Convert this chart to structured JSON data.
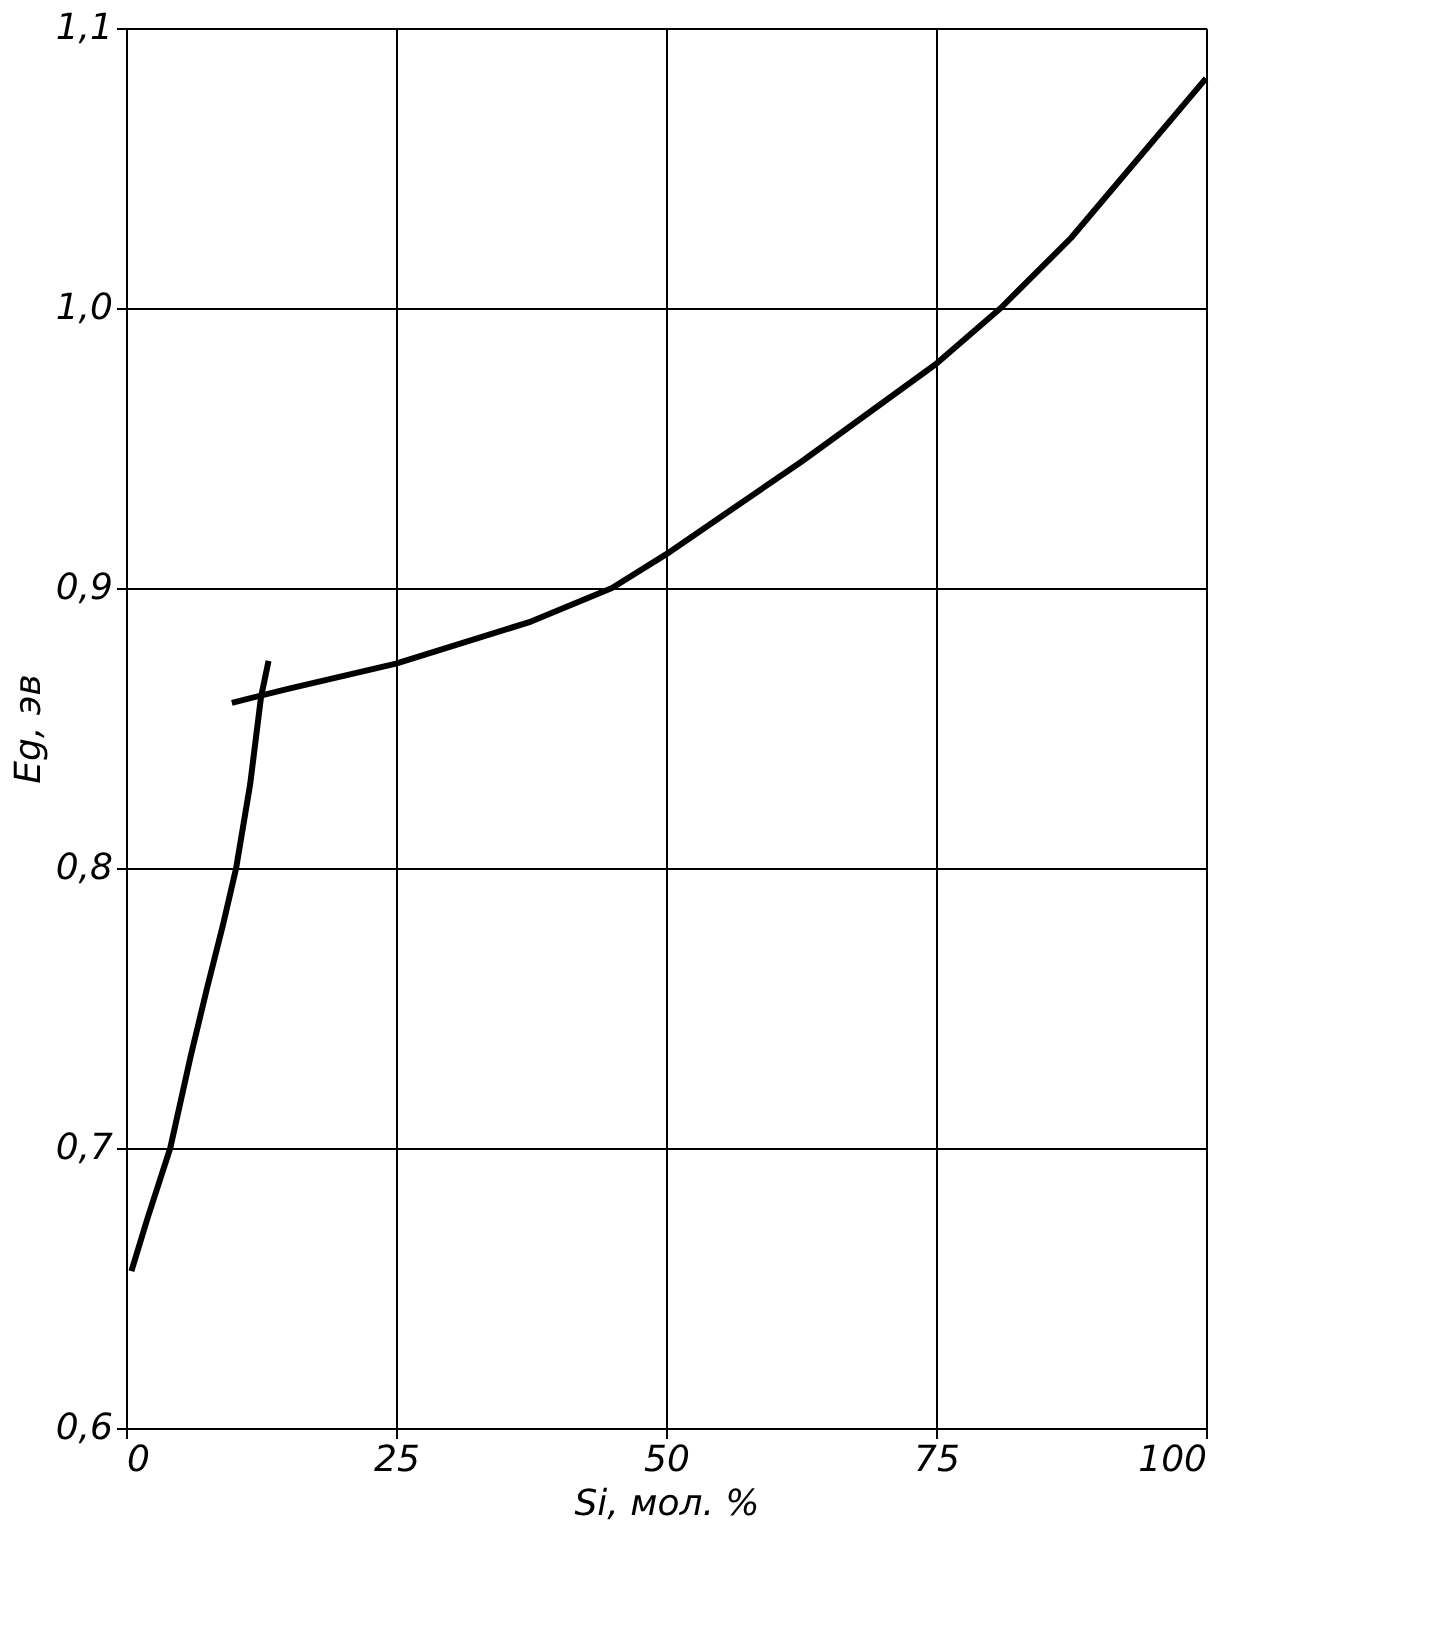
{
  "chart_data": {
    "type": "line",
    "xlabel": "Si, мол. %",
    "ylabel": "Eg, эв",
    "xlim": [
      0,
      100
    ],
    "xticks": [
      0,
      25,
      50,
      75,
      100
    ],
    "ylim": [
      0.6,
      1.1
    ],
    "yticks": [
      {
        "value": 0.6,
        "label": "0,6"
      },
      {
        "value": 0.7,
        "label": "0,7"
      },
      {
        "value": 0.8,
        "label": "0,8"
      },
      {
        "value": 0.9,
        "label": "0,9"
      },
      {
        "value": 1.0,
        "label": "1,0"
      },
      {
        "value": 1.1,
        "label": "1,1"
      }
    ],
    "grid": true,
    "marker": "none",
    "line_style": "solid",
    "legend": false,
    "series": [
      {
        "color": "#000000",
        "x": [
          0.5,
          2,
          4.1,
          6,
          7.5,
          9,
          10.2,
          11.5,
          12.5,
          13.2
        ],
        "values": [
          0.656,
          0.675,
          0.7,
          0.733,
          0.757,
          0.78,
          0.8,
          0.83,
          0.861,
          0.874
        ]
      },
      {
        "color": "#000000",
        "x": [
          9.8,
          15,
          25,
          37.5,
          45,
          50,
          62.5,
          75,
          81,
          87.5,
          100
        ],
        "values": [
          0.859,
          0.864,
          0.873,
          0.888,
          0.9,
          0.912,
          0.945,
          0.98,
          1.0,
          1.025,
          1.082
        ]
      }
    ]
  }
}
